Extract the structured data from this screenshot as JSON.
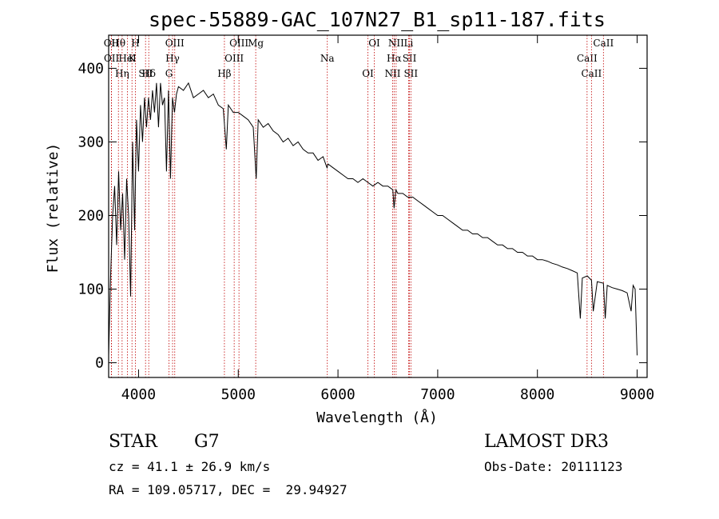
{
  "chart_data": {
    "type": "line",
    "title": "spec-55889-GAC_107N27_B1_sp11-187.fits",
    "xlabel": "Wavelength (Å)",
    "ylabel": "Flux (relative)",
    "xlim": [
      3700,
      9100
    ],
    "ylim": [
      -20,
      445
    ],
    "xticks": [
      4000,
      5000,
      6000,
      7000,
      8000,
      9000
    ],
    "yticks": [
      0,
      100,
      200,
      300,
      400
    ],
    "series": [
      {
        "name": "flux",
        "x": [
          3700,
          3720,
          3740,
          3760,
          3780,
          3800,
          3820,
          3840,
          3860,
          3880,
          3900,
          3920,
          3940,
          3960,
          3980,
          4000,
          4020,
          4040,
          4060,
          4080,
          4100,
          4120,
          4140,
          4160,
          4180,
          4200,
          4220,
          4240,
          4260,
          4280,
          4300,
          4320,
          4340,
          4360,
          4380,
          4400,
          4450,
          4500,
          4550,
          4600,
          4650,
          4700,
          4750,
          4800,
          4850,
          4880,
          4900,
          4950,
          5000,
          5050,
          5100,
          5150,
          5180,
          5200,
          5250,
          5300,
          5350,
          5400,
          5450,
          5500,
          5550,
          5600,
          5650,
          5700,
          5750,
          5800,
          5850,
          5890,
          5900,
          5950,
          6000,
          6050,
          6100,
          6150,
          6200,
          6250,
          6300,
          6350,
          6400,
          6450,
          6500,
          6550,
          6563,
          6580,
          6600,
          6650,
          6700,
          6750,
          6800,
          6850,
          6900,
          6950,
          7000,
          7050,
          7100,
          7150,
          7200,
          7250,
          7300,
          7350,
          7400,
          7450,
          7500,
          7550,
          7600,
          7650,
          7700,
          7750,
          7800,
          7850,
          7900,
          7950,
          8000,
          8050,
          8100,
          8150,
          8200,
          8250,
          8300,
          8350,
          8400,
          8430,
          8450,
          8500,
          8542,
          8560,
          8600,
          8662,
          8680,
          8700,
          8750,
          8800,
          8850,
          8900,
          8940,
          8960,
          8980,
          9000
        ],
        "values": [
          10,
          120,
          200,
          240,
          160,
          260,
          180,
          230,
          140,
          250,
          200,
          90,
          300,
          180,
          330,
          260,
          350,
          300,
          360,
          320,
          360,
          330,
          370,
          340,
          380,
          320,
          380,
          350,
          360,
          260,
          370,
          250,
          360,
          340,
          365,
          375,
          370,
          380,
          360,
          365,
          370,
          360,
          365,
          350,
          345,
          290,
          350,
          340,
          340,
          335,
          330,
          320,
          250,
          330,
          320,
          325,
          315,
          310,
          300,
          305,
          295,
          300,
          290,
          285,
          285,
          275,
          280,
          265,
          270,
          265,
          260,
          255,
          250,
          250,
          245,
          250,
          245,
          240,
          245,
          240,
          240,
          235,
          210,
          235,
          230,
          230,
          225,
          225,
          220,
          215,
          210,
          205,
          200,
          200,
          195,
          190,
          185,
          180,
          180,
          175,
          175,
          170,
          170,
          165,
          160,
          160,
          155,
          155,
          150,
          150,
          145,
          145,
          140,
          140,
          138,
          135,
          133,
          130,
          128,
          125,
          122,
          60,
          115,
          118,
          112,
          70,
          110,
          108,
          60,
          105,
          102,
          100,
          98,
          95,
          70,
          105,
          100,
          10
        ]
      }
    ],
    "spectral_lines": [
      {
        "label": "Hθ",
        "x": 3798
      },
      {
        "label": "K",
        "x": 3934
      },
      {
        "label": "Hδ",
        "x": 4102
      },
      {
        "label": "OII",
        "x": 3727
      },
      {
        "label": "HeI",
        "x": 3889
      },
      {
        "label": "SII",
        "x": 4070
      },
      {
        "label": "OIII",
        "x": 4363
      },
      {
        "label": "Hγ",
        "x": 4341
      },
      {
        "label": "G",
        "x": 4305
      },
      {
        "label": "OIII",
        "x": 5007
      },
      {
        "label": "OIII",
        "x": 4959
      },
      {
        "label": "Hβ",
        "x": 4861
      },
      {
        "label": "Mg",
        "x": 5175
      },
      {
        "label": "Na",
        "x": 5893
      },
      {
        "label": "OI",
        "x": 6300
      },
      {
        "label": "OI",
        "x": 6364
      },
      {
        "label": "Hα",
        "x": 6563
      },
      {
        "label": "NII",
        "x": 6548
      },
      {
        "label": "NII",
        "x": 6583
      },
      {
        "label": "SII",
        "x": 6717
      },
      {
        "label": "SII",
        "x": 6731
      },
      {
        "label": "Li",
        "x": 6708
      },
      {
        "label": "CaII",
        "x": 8498
      },
      {
        "label": "CaII",
        "x": 8542
      },
      {
        "label": "CaII",
        "x": 8662
      },
      {
        "label": "OII",
        "x": 3729
      },
      {
        "label": "Hη",
        "x": 3835
      },
      {
        "label": "H",
        "x": 3968
      }
    ]
  },
  "info": {
    "object_class": "STAR",
    "subclass": "G7",
    "survey": "LAMOST DR3",
    "redshift": "cz = 41.1 ± 26.9 km/s",
    "obs_date": "Obs-Date: 20111123",
    "coords": "RA = 109.05717, DEC =  29.94927"
  }
}
